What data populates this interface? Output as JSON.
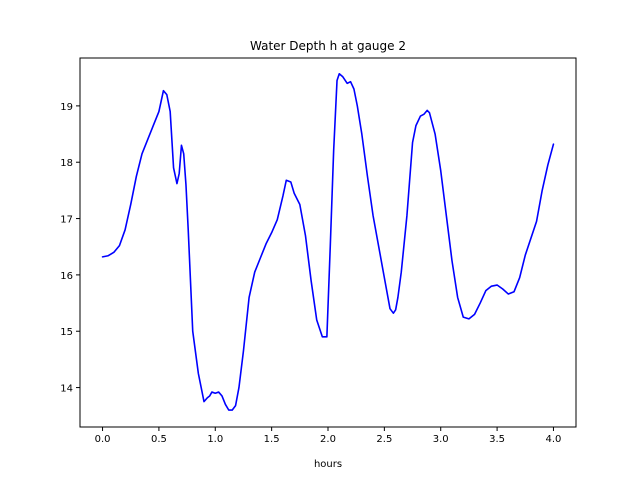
{
  "chart_data": {
    "type": "line",
    "title": "Water Depth h at gauge 2",
    "xlabel": "hours",
    "ylabel": "",
    "xlim": [
      -0.2,
      4.2
    ],
    "ylim": [
      13.3,
      19.85
    ],
    "xticks": [
      0.0,
      0.5,
      1.0,
      1.5,
      2.0,
      2.5,
      3.0,
      3.5,
      4.0
    ],
    "xtick_labels": [
      "0.0",
      "0.5",
      "1.0",
      "1.5",
      "2.0",
      "2.5",
      "3.0",
      "3.5",
      "4.0"
    ],
    "yticks": [
      14,
      15,
      16,
      17,
      18,
      19
    ],
    "ytick_labels": [
      "14",
      "15",
      "16",
      "17",
      "18",
      "19"
    ],
    "grid": false,
    "line_color": "#0000ff",
    "series": [
      {
        "x": [
          0.0,
          0.05,
          0.1,
          0.15,
          0.2,
          0.25,
          0.3,
          0.35,
          0.4,
          0.45,
          0.5,
          0.54,
          0.57,
          0.6,
          0.63,
          0.66,
          0.68,
          0.7,
          0.72,
          0.74,
          0.76,
          0.8,
          0.85,
          0.9,
          0.93,
          0.95,
          0.97,
          1.0,
          1.03,
          1.06,
          1.09,
          1.12,
          1.15,
          1.18,
          1.21,
          1.25,
          1.3,
          1.35,
          1.4,
          1.45,
          1.5,
          1.55,
          1.6,
          1.63,
          1.67,
          1.7,
          1.75,
          1.8,
          1.85,
          1.9,
          1.95,
          1.99,
          2.02,
          2.05,
          2.08,
          2.1,
          2.13,
          2.17,
          2.2,
          2.23,
          2.26,
          2.3,
          2.35,
          2.4,
          2.45,
          2.5,
          2.55,
          2.58,
          2.6,
          2.62,
          2.65,
          2.7,
          2.75,
          2.78,
          2.82,
          2.85,
          2.88,
          2.9,
          2.95,
          3.0,
          3.05,
          3.1,
          3.15,
          3.2,
          3.25,
          3.3,
          3.35,
          3.4,
          3.45,
          3.5,
          3.55,
          3.6,
          3.65,
          3.7,
          3.75,
          3.8,
          3.85,
          3.9,
          3.95,
          4.0
        ],
        "y": [
          16.32,
          16.34,
          16.4,
          16.52,
          16.8,
          17.25,
          17.75,
          18.15,
          18.4,
          18.65,
          18.9,
          19.27,
          19.2,
          18.9,
          17.9,
          17.62,
          17.8,
          18.3,
          18.15,
          17.6,
          16.8,
          15.0,
          14.25,
          13.75,
          13.82,
          13.85,
          13.92,
          13.9,
          13.92,
          13.85,
          13.7,
          13.6,
          13.6,
          13.68,
          14.0,
          14.65,
          15.6,
          16.05,
          16.3,
          16.55,
          16.75,
          16.98,
          17.4,
          17.68,
          17.65,
          17.45,
          17.25,
          16.7,
          15.9,
          15.2,
          14.9,
          14.9,
          16.5,
          18.2,
          19.45,
          19.57,
          19.52,
          19.4,
          19.43,
          19.3,
          19.0,
          18.5,
          17.75,
          17.05,
          16.5,
          15.95,
          15.4,
          15.32,
          15.38,
          15.6,
          16.05,
          17.05,
          18.35,
          18.65,
          18.82,
          18.85,
          18.92,
          18.88,
          18.5,
          17.85,
          17.05,
          16.25,
          15.6,
          15.25,
          15.22,
          15.3,
          15.5,
          15.72,
          15.8,
          15.82,
          15.75,
          15.66,
          15.7,
          15.95,
          16.35,
          16.65,
          16.95,
          17.5,
          17.95,
          18.32
        ]
      }
    ]
  }
}
